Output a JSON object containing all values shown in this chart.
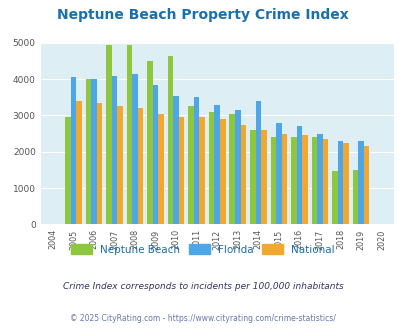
{
  "title": "Neptune Beach Property Crime Index",
  "years": [
    "2004",
    "2005",
    "2006",
    "2007",
    "2008",
    "2009",
    "2010",
    "2011",
    "2012",
    "2013",
    "2014",
    "2015",
    "2016",
    "2017",
    "2018",
    "2019",
    "2020"
  ],
  "neptune_beach": [
    0,
    2950,
    4000,
    4950,
    4950,
    4500,
    4650,
    3250,
    3100,
    3050,
    2600,
    2400,
    2400,
    2400,
    1480,
    1500,
    0
  ],
  "florida": [
    0,
    4050,
    4000,
    4100,
    4150,
    3850,
    3550,
    3500,
    3300,
    3150,
    3400,
    2800,
    2700,
    2500,
    2300,
    2300,
    0
  ],
  "national": [
    0,
    3400,
    3350,
    3250,
    3200,
    3050,
    2950,
    2950,
    2900,
    2750,
    2600,
    2500,
    2450,
    2350,
    2250,
    2150,
    0
  ],
  "neptune_beach_color": "#8dc63f",
  "florida_color": "#4da6e8",
  "national_color": "#f0a830",
  "background_color": "#ddeef4",
  "ylim": [
    0,
    5000
  ],
  "yticks": [
    0,
    1000,
    2000,
    3000,
    4000,
    5000
  ],
  "subtitle": "Crime Index corresponds to incidents per 100,000 inhabitants",
  "footer": "© 2025 CityRating.com - https://www.cityrating.com/crime-statistics/",
  "legend_labels": [
    "Neptune Beach",
    "Florida",
    "National"
  ],
  "title_color": "#1a6fad",
  "subtitle_color": "#333366",
  "footer_color": "#6677aa"
}
